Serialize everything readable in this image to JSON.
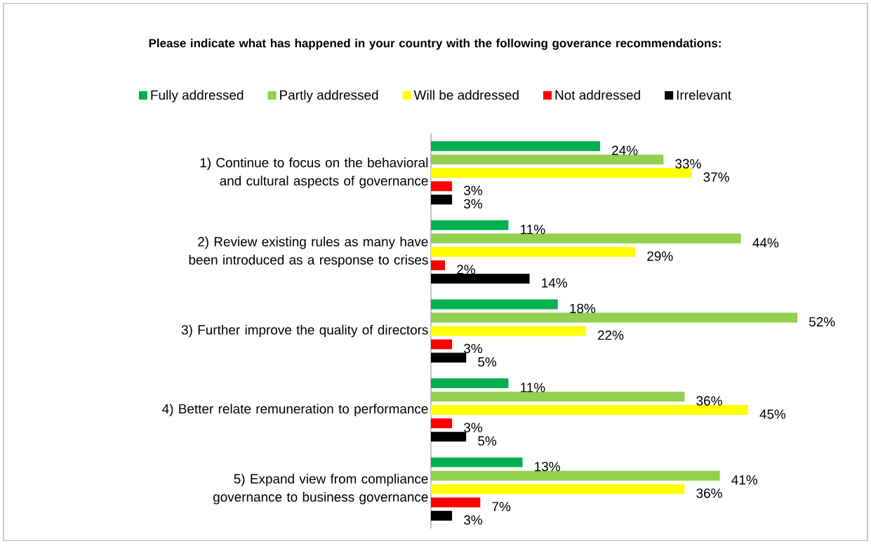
{
  "chart_data": {
    "type": "bar",
    "orientation": "horizontal",
    "title": "Please indicate what has happened in your country with the following goverance recommendations:",
    "categories": [
      "1) Continue to focus on the behavioral and cultural aspects of governance",
      "2) Review existing rules as many have been introduced as a response to crises",
      "3) Further improve the quality of directors",
      "4) Better relate remuneration to performance",
      "5) Expand view from compliance governance to business governance"
    ],
    "legend": "top",
    "series": [
      {
        "name": "Fully addressed",
        "color": "#00b050",
        "values": [
          24,
          11,
          18,
          11,
          13
        ],
        "value_labels": [
          "24%",
          "11%",
          "18%",
          "11%",
          "13%"
        ]
      },
      {
        "name": "Partly addressed",
        "color": "#92d050",
        "values": [
          33,
          44,
          52,
          36,
          41
        ],
        "value_labels": [
          "33%",
          "44%",
          "52%",
          "36%",
          "41%"
        ]
      },
      {
        "name": "Will be addressed",
        "color": "#ffff00",
        "values": [
          37,
          29,
          22,
          45,
          36
        ],
        "value_labels": [
          "37%",
          "29%",
          "22%",
          "45%",
          "36%"
        ]
      },
      {
        "name": "Not addressed",
        "color": "#ff0000",
        "values": [
          3,
          2,
          3,
          3,
          7
        ],
        "value_labels": [
          "3%",
          "2%",
          "3%",
          "3%",
          "7%"
        ]
      },
      {
        "name": "Irrelevant",
        "color": "#000000",
        "values": [
          3,
          14,
          5,
          5,
          3
        ],
        "value_labels": [
          "3%",
          "14%",
          "5%",
          "5%",
          "3%"
        ]
      }
    ]
  }
}
